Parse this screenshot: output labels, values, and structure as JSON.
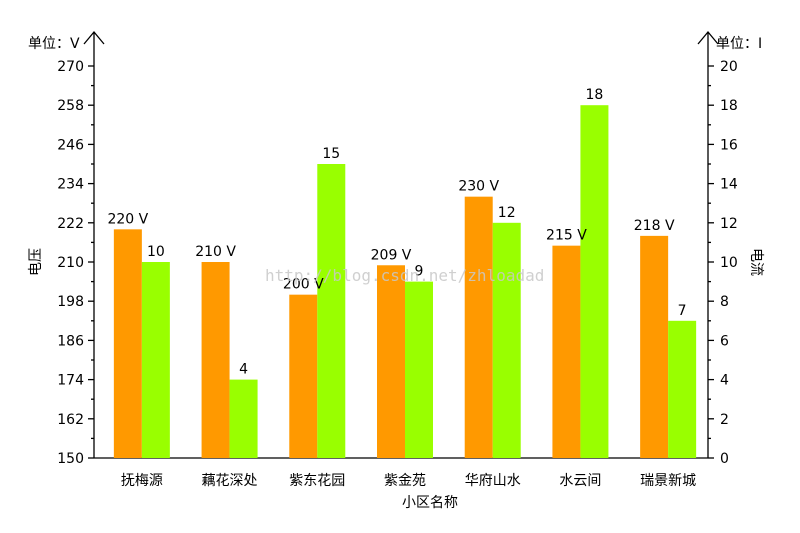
{
  "chart_data": {
    "type": "bar",
    "categories": [
      "抚梅源",
      "藕花深处",
      "紫东花园",
      "紫金苑",
      "华府山水",
      "水云间",
      "瑞景新城"
    ],
    "series": [
      {
        "values": [
          220,
          210,
          200,
          209,
          230,
          215,
          218
        ],
        "labels": [
          "220 V",
          "210 V",
          "200 V",
          "209 V",
          "230 V",
          "215 V",
          "218 V"
        ],
        "color": "#ff9900",
        "axis": "left"
      },
      {
        "values": [
          10,
          4,
          15,
          9,
          12,
          18,
          7
        ],
        "labels": [
          "10",
          "4",
          "15",
          "9",
          "12",
          "18",
          "7"
        ],
        "color": "#99ff00",
        "axis": "right"
      }
    ],
    "xlabel": "小区名称",
    "ylabel_left": "电压",
    "ylabel_right": "电流",
    "unit_left": "单位：V",
    "unit_right": "单位：I",
    "ylim_left": [
      150,
      270
    ],
    "yticks_left": [
      150,
      162,
      174,
      186,
      198,
      210,
      222,
      234,
      246,
      258,
      270
    ],
    "ylim_right": [
      0,
      20
    ],
    "yticks_right": [
      0,
      2,
      4,
      6,
      8,
      10,
      12,
      14,
      16,
      18,
      20
    ],
    "grid": false,
    "watermark": "http://blog.csdn.net/zhloadad"
  }
}
